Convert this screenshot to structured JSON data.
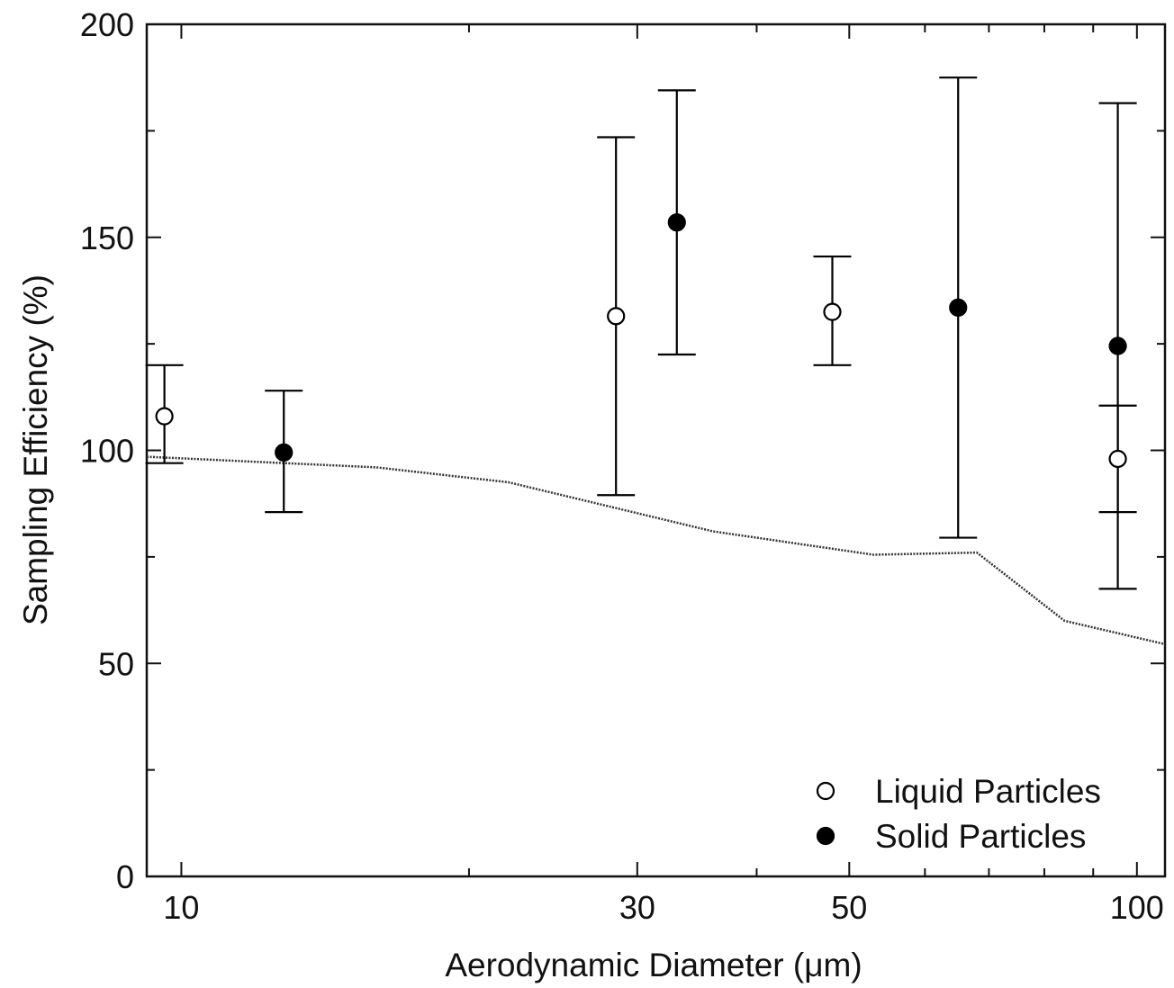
{
  "chart_data": {
    "type": "scatter",
    "xlabel": "Aerodynamic Diameter (μm)",
    "ylabel": "Sampling Efficiency (%)",
    "xscale": "log",
    "xlim": [
      9.2,
      107
    ],
    "ylim": [
      0,
      200
    ],
    "x_major_ticks": [
      10,
      30,
      50,
      100
    ],
    "x_minor_ticks": [
      20,
      40,
      60,
      70,
      80,
      90
    ],
    "x_tick_labels": [
      "10",
      "30",
      "50",
      "100"
    ],
    "y_ticks": [
      0,
      50,
      100,
      150,
      200
    ],
    "y_tick_labels": [
      "0",
      "50",
      "100",
      "150",
      "200"
    ],
    "y_minor_ticks": [
      25,
      75,
      125,
      175
    ],
    "grid": false,
    "legend_position": "bottom-right",
    "series": [
      {
        "name": "Liquid Particles",
        "marker": "open-circle",
        "points": [
          {
            "x": 9.6,
            "y": 108,
            "ylow": 97,
            "yhigh": 120
          },
          {
            "x": 28.5,
            "y": 131.5,
            "ylow": 89.5,
            "yhigh": 173.5
          },
          {
            "x": 48,
            "y": 132.5,
            "ylow": 120,
            "yhigh": 145.5
          },
          {
            "x": 95.5,
            "y": 98,
            "ylow": 85.5,
            "yhigh": 110.5
          }
        ]
      },
      {
        "name": "Solid Particles",
        "marker": "filled-circle",
        "points": [
          {
            "x": 12.8,
            "y": 99.5,
            "ylow": 85.5,
            "yhigh": 114
          },
          {
            "x": 33,
            "y": 153.5,
            "ylow": 122.5,
            "yhigh": 184.5
          },
          {
            "x": 65,
            "y": 133.5,
            "ylow": 79.5,
            "yhigh": 187.5
          },
          {
            "x": 95.5,
            "y": 124.5,
            "ylow": 67.5,
            "yhigh": 181.5
          }
        ]
      },
      {
        "marker": "dotted-line",
        "points": [
          {
            "x": 9.2,
            "y": 98.5
          },
          {
            "x": 16,
            "y": 96
          },
          {
            "x": 22,
            "y": 92.5
          },
          {
            "x": 36,
            "y": 81
          },
          {
            "x": 53,
            "y": 75.5
          },
          {
            "x": 68,
            "y": 76
          },
          {
            "x": 84,
            "y": 60
          },
          {
            "x": 107,
            "y": 54.5
          }
        ]
      }
    ]
  },
  "colors": {
    "axis": "#111111",
    "marker": "#000000",
    "curve": "#333333"
  }
}
